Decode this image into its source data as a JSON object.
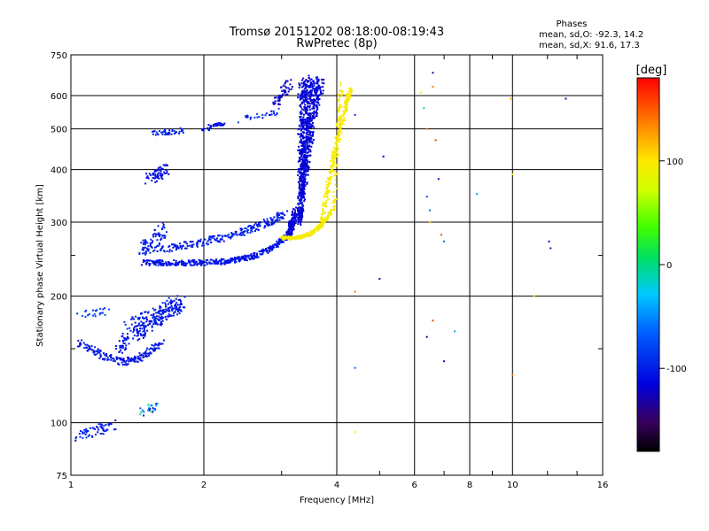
{
  "chart_data": {
    "type": "scatter",
    "title": "Tromsø 20151202 08:18:00-08:19:43",
    "subtitle": "RwPretec (8p)",
    "xlabel": "Frequency [MHz]",
    "ylabel": "Stationary phase Virtual Height [km]",
    "xscale": "log",
    "yscale": "log",
    "xlim": [
      1,
      16
    ],
    "ylim": [
      75,
      750
    ],
    "x_ticks": [
      1,
      2,
      4,
      6,
      8,
      10,
      16
    ],
    "x_tick_labels": [
      "1",
      "2",
      "4",
      "6",
      "8",
      "10",
      "16"
    ],
    "y_ticks": [
      75,
      100,
      200,
      300,
      400,
      500,
      600,
      750
    ],
    "y_tick_labels": [
      "75",
      "100",
      "200",
      "300",
      "400",
      "500",
      "600",
      "750"
    ],
    "grid": true,
    "legend": {
      "title": "Phases",
      "lines": [
        "mean, sd,O: -92.3, 14.2",
        "mean, sd,X:  91.6, 17.3"
      ],
      "position": "top-right"
    },
    "colorbar": {
      "label": "[deg]",
      "range": [
        -180,
        180
      ],
      "ticks": [
        100,
        0,
        -100
      ],
      "tick_labels": [
        "100",
        "0",
        "-100"
      ],
      "colormap": "rainbow"
    },
    "traces": [
      {
        "description": "O-mode E/F1 trace low freq",
        "phase": -100,
        "x_range": [
          1.0,
          1.9
        ],
        "y_range": [
          90,
          200
        ]
      },
      {
        "description": "O-mode F trace main branch",
        "phase": -100,
        "x_range": [
          1.4,
          3.3
        ],
        "y_range": [
          235,
          300
        ]
      },
      {
        "description": "O-mode F cusp near critical",
        "phase": -110,
        "x_range": [
          3.1,
          3.7
        ],
        "y_range": [
          300,
          660
        ]
      },
      {
        "description": "X-mode trace near critical",
        "phase": 95,
        "x_range": [
          3.1,
          4.3
        ],
        "y_range": [
          270,
          660
        ]
      },
      {
        "description": "Multi-hop echoes",
        "phase": -100,
        "x_range": [
          1.5,
          3.0
        ],
        "y_range": [
          360,
          560
        ]
      }
    ],
    "sparse_points": [
      {
        "x": 4.4,
        "y": 540,
        "phase": -100
      },
      {
        "x": 4.4,
        "y": 205,
        "phase": 140
      },
      {
        "x": 4.4,
        "y": 135,
        "phase": -60
      },
      {
        "x": 4.4,
        "y": 95,
        "phase": 100
      },
      {
        "x": 5.1,
        "y": 430,
        "phase": -120
      },
      {
        "x": 5.0,
        "y": 220,
        "phase": -120
      },
      {
        "x": 6.2,
        "y": 610,
        "phase": 100
      },
      {
        "x": 6.3,
        "y": 560,
        "phase": -20
      },
      {
        "x": 6.4,
        "y": 500,
        "phase": 140
      },
      {
        "x": 6.4,
        "y": 345,
        "phase": -80
      },
      {
        "x": 6.5,
        "y": 320,
        "phase": -60
      },
      {
        "x": 6.5,
        "y": 300,
        "phase": 110
      },
      {
        "x": 6.6,
        "y": 680,
        "phase": -140
      },
      {
        "x": 6.6,
        "y": 630,
        "phase": 140
      },
      {
        "x": 6.7,
        "y": 470,
        "phase": 160
      },
      {
        "x": 6.8,
        "y": 380,
        "phase": -120
      },
      {
        "x": 6.4,
        "y": 160,
        "phase": -130
      },
      {
        "x": 6.6,
        "y": 175,
        "phase": 160
      },
      {
        "x": 6.9,
        "y": 280,
        "phase": 150
      },
      {
        "x": 7.0,
        "y": 270,
        "phase": -60
      },
      {
        "x": 7.0,
        "y": 140,
        "phase": -120
      },
      {
        "x": 7.4,
        "y": 165,
        "phase": -40
      },
      {
        "x": 8.3,
        "y": 350,
        "phase": -40
      },
      {
        "x": 9.9,
        "y": 590,
        "phase": 120
      },
      {
        "x": 10.0,
        "y": 390,
        "phase": 100
      },
      {
        "x": 10.0,
        "y": 130,
        "phase": 140
      },
      {
        "x": 11.2,
        "y": 200,
        "phase": 110
      },
      {
        "x": 12.1,
        "y": 270,
        "phase": -120
      },
      {
        "x": 12.2,
        "y": 260,
        "phase": -140
      },
      {
        "x": 13.2,
        "y": 590,
        "phase": -120
      }
    ]
  }
}
